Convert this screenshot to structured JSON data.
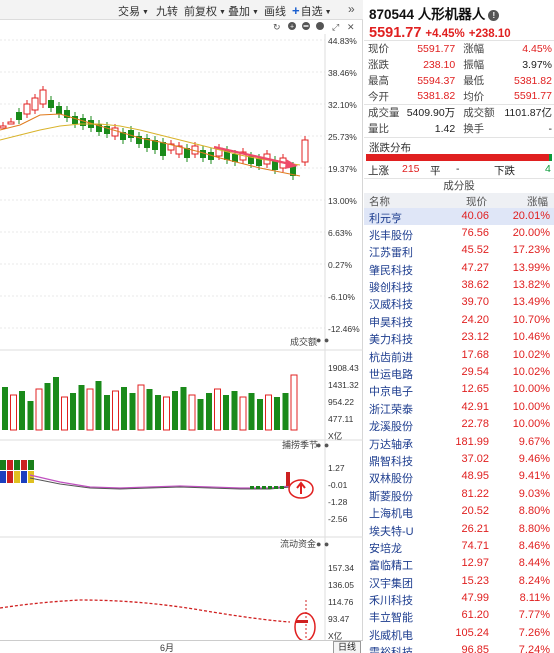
{
  "toolbar": {
    "items": [
      "交易",
      "九转",
      "前复权",
      "叠加",
      "画线",
      "自选",
      "»"
    ]
  },
  "chart": {
    "price_axis": [
      "44.83%",
      "38.46%",
      "32.10%",
      "25.73%",
      "19.37%",
      "13.00%",
      "6.63%",
      "0.27%",
      "-6.10%",
      "-12.46%"
    ],
    "volume_title": "成交额",
    "volume_axis": [
      "1908.43",
      "1431.32",
      "954.22",
      "477.11",
      "X亿"
    ],
    "bottom_title": "捕捞季节",
    "bottom_axis": [
      "1.27",
      "-0.01",
      "-1.28",
      "-2.56"
    ],
    "flow_title": "流动资金",
    "flow_axis": [
      "157.34",
      "136.05",
      "114.76",
      "93.47",
      "X亿"
    ],
    "month_label": "6月",
    "period_button": "日线"
  },
  "chart_data": [
    {
      "type": "candlestick",
      "title": "",
      "y_ticks": [
        "44.83%",
        "38.46%",
        "32.10%",
        "25.73%",
        "19.37%",
        "13.00%",
        "6.63%",
        "0.27%",
        "-6.10%",
        "-12.46%"
      ]
    },
    {
      "type": "bar",
      "title": "成交额",
      "y_ticks": [
        "1908.43",
        "1431.32",
        "954.22",
        "477.11"
      ],
      "unit": "X亿"
    }
  ],
  "quote": {
    "code_name": "870544 人形机器人",
    "price": "5591.77",
    "change": "+4.45%",
    "change_amt": "+238.10",
    "rows": [
      {
        "l1": "现价",
        "v1": "5591.77",
        "c1": "red",
        "l2": "涨幅",
        "v2": "4.45%",
        "c2": "red"
      },
      {
        "l1": "涨跌",
        "v1": "238.10",
        "c1": "red",
        "l2": "振幅",
        "v2": "3.97%",
        "c2": "blk"
      },
      {
        "l1": "最高",
        "v1": "5594.37",
        "c1": "red",
        "l2": "最低",
        "v2": "5381.82",
        "c2": "red"
      },
      {
        "l1": "今开",
        "v1": "5381.82",
        "c1": "red",
        "l2": "均价",
        "v2": "5591.77",
        "c2": "red"
      },
      {
        "l1": "成交量",
        "v1": "5409.90万",
        "c1": "blk",
        "l2": "成交额",
        "v2": "1101.87亿",
        "c2": "blk"
      },
      {
        "l1": "量比",
        "v1": "1.42",
        "c1": "blk",
        "l2": "换手",
        "v2": "-",
        "c2": "blk"
      }
    ],
    "dist_title": "涨跌分布",
    "dist": {
      "up_label": "上涨",
      "up": "215",
      "flat_label": "平",
      "flat": "-",
      "down_label": "下跌",
      "down": "4"
    }
  },
  "components": {
    "title": "成分股",
    "headers": [
      "名称",
      "现价",
      "涨幅"
    ],
    "rows": [
      {
        "name": "利元亨",
        "price": "40.06",
        "chg": "20.01%"
      },
      {
        "name": "兆丰股份",
        "price": "76.56",
        "chg": "20.00%"
      },
      {
        "name": "江苏雷利",
        "price": "45.52",
        "chg": "17.23%"
      },
      {
        "name": "肇民科技",
        "price": "47.27",
        "chg": "13.99%"
      },
      {
        "name": "骏创科技",
        "price": "38.62",
        "chg": "13.82%"
      },
      {
        "name": "汉威科技",
        "price": "39.70",
        "chg": "13.49%"
      },
      {
        "name": "申昊科技",
        "price": "24.20",
        "chg": "10.70%"
      },
      {
        "name": "美力科技",
        "price": "23.12",
        "chg": "10.46%"
      },
      {
        "name": "杭齿前进",
        "price": "17.68",
        "chg": "10.02%"
      },
      {
        "name": "世运电路",
        "price": "29.54",
        "chg": "10.02%"
      },
      {
        "name": "中京电子",
        "price": "12.65",
        "chg": "10.00%"
      },
      {
        "name": "浙江荣泰",
        "price": "42.91",
        "chg": "10.00%"
      },
      {
        "name": "龙溪股份",
        "price": "22.78",
        "chg": "10.00%"
      },
      {
        "name": "万达轴承",
        "price": "181.99",
        "chg": "9.67%"
      },
      {
        "name": "鼎智科技",
        "price": "37.02",
        "chg": "9.46%"
      },
      {
        "name": "双林股份",
        "price": "48.95",
        "chg": "9.41%"
      },
      {
        "name": "斯菱股份",
        "price": "81.22",
        "chg": "9.03%"
      },
      {
        "name": "上海机电",
        "price": "20.52",
        "chg": "8.80%"
      },
      {
        "name": "埃夫特-U",
        "price": "26.21",
        "chg": "8.80%"
      },
      {
        "name": "安培龙",
        "price": "74.71",
        "chg": "8.46%"
      },
      {
        "name": "富临精工",
        "price": "12.97",
        "chg": "8.44%"
      },
      {
        "name": "汉宇集团",
        "price": "15.23",
        "chg": "8.24%"
      },
      {
        "name": "禾川科技",
        "price": "47.99",
        "chg": "8.11%"
      },
      {
        "name": "丰立智能",
        "price": "61.20",
        "chg": "7.77%"
      },
      {
        "name": "兆威机电",
        "price": "105.24",
        "chg": "7.26%"
      },
      {
        "name": "震裕科技",
        "price": "96.85",
        "chg": "7.24%"
      }
    ]
  }
}
